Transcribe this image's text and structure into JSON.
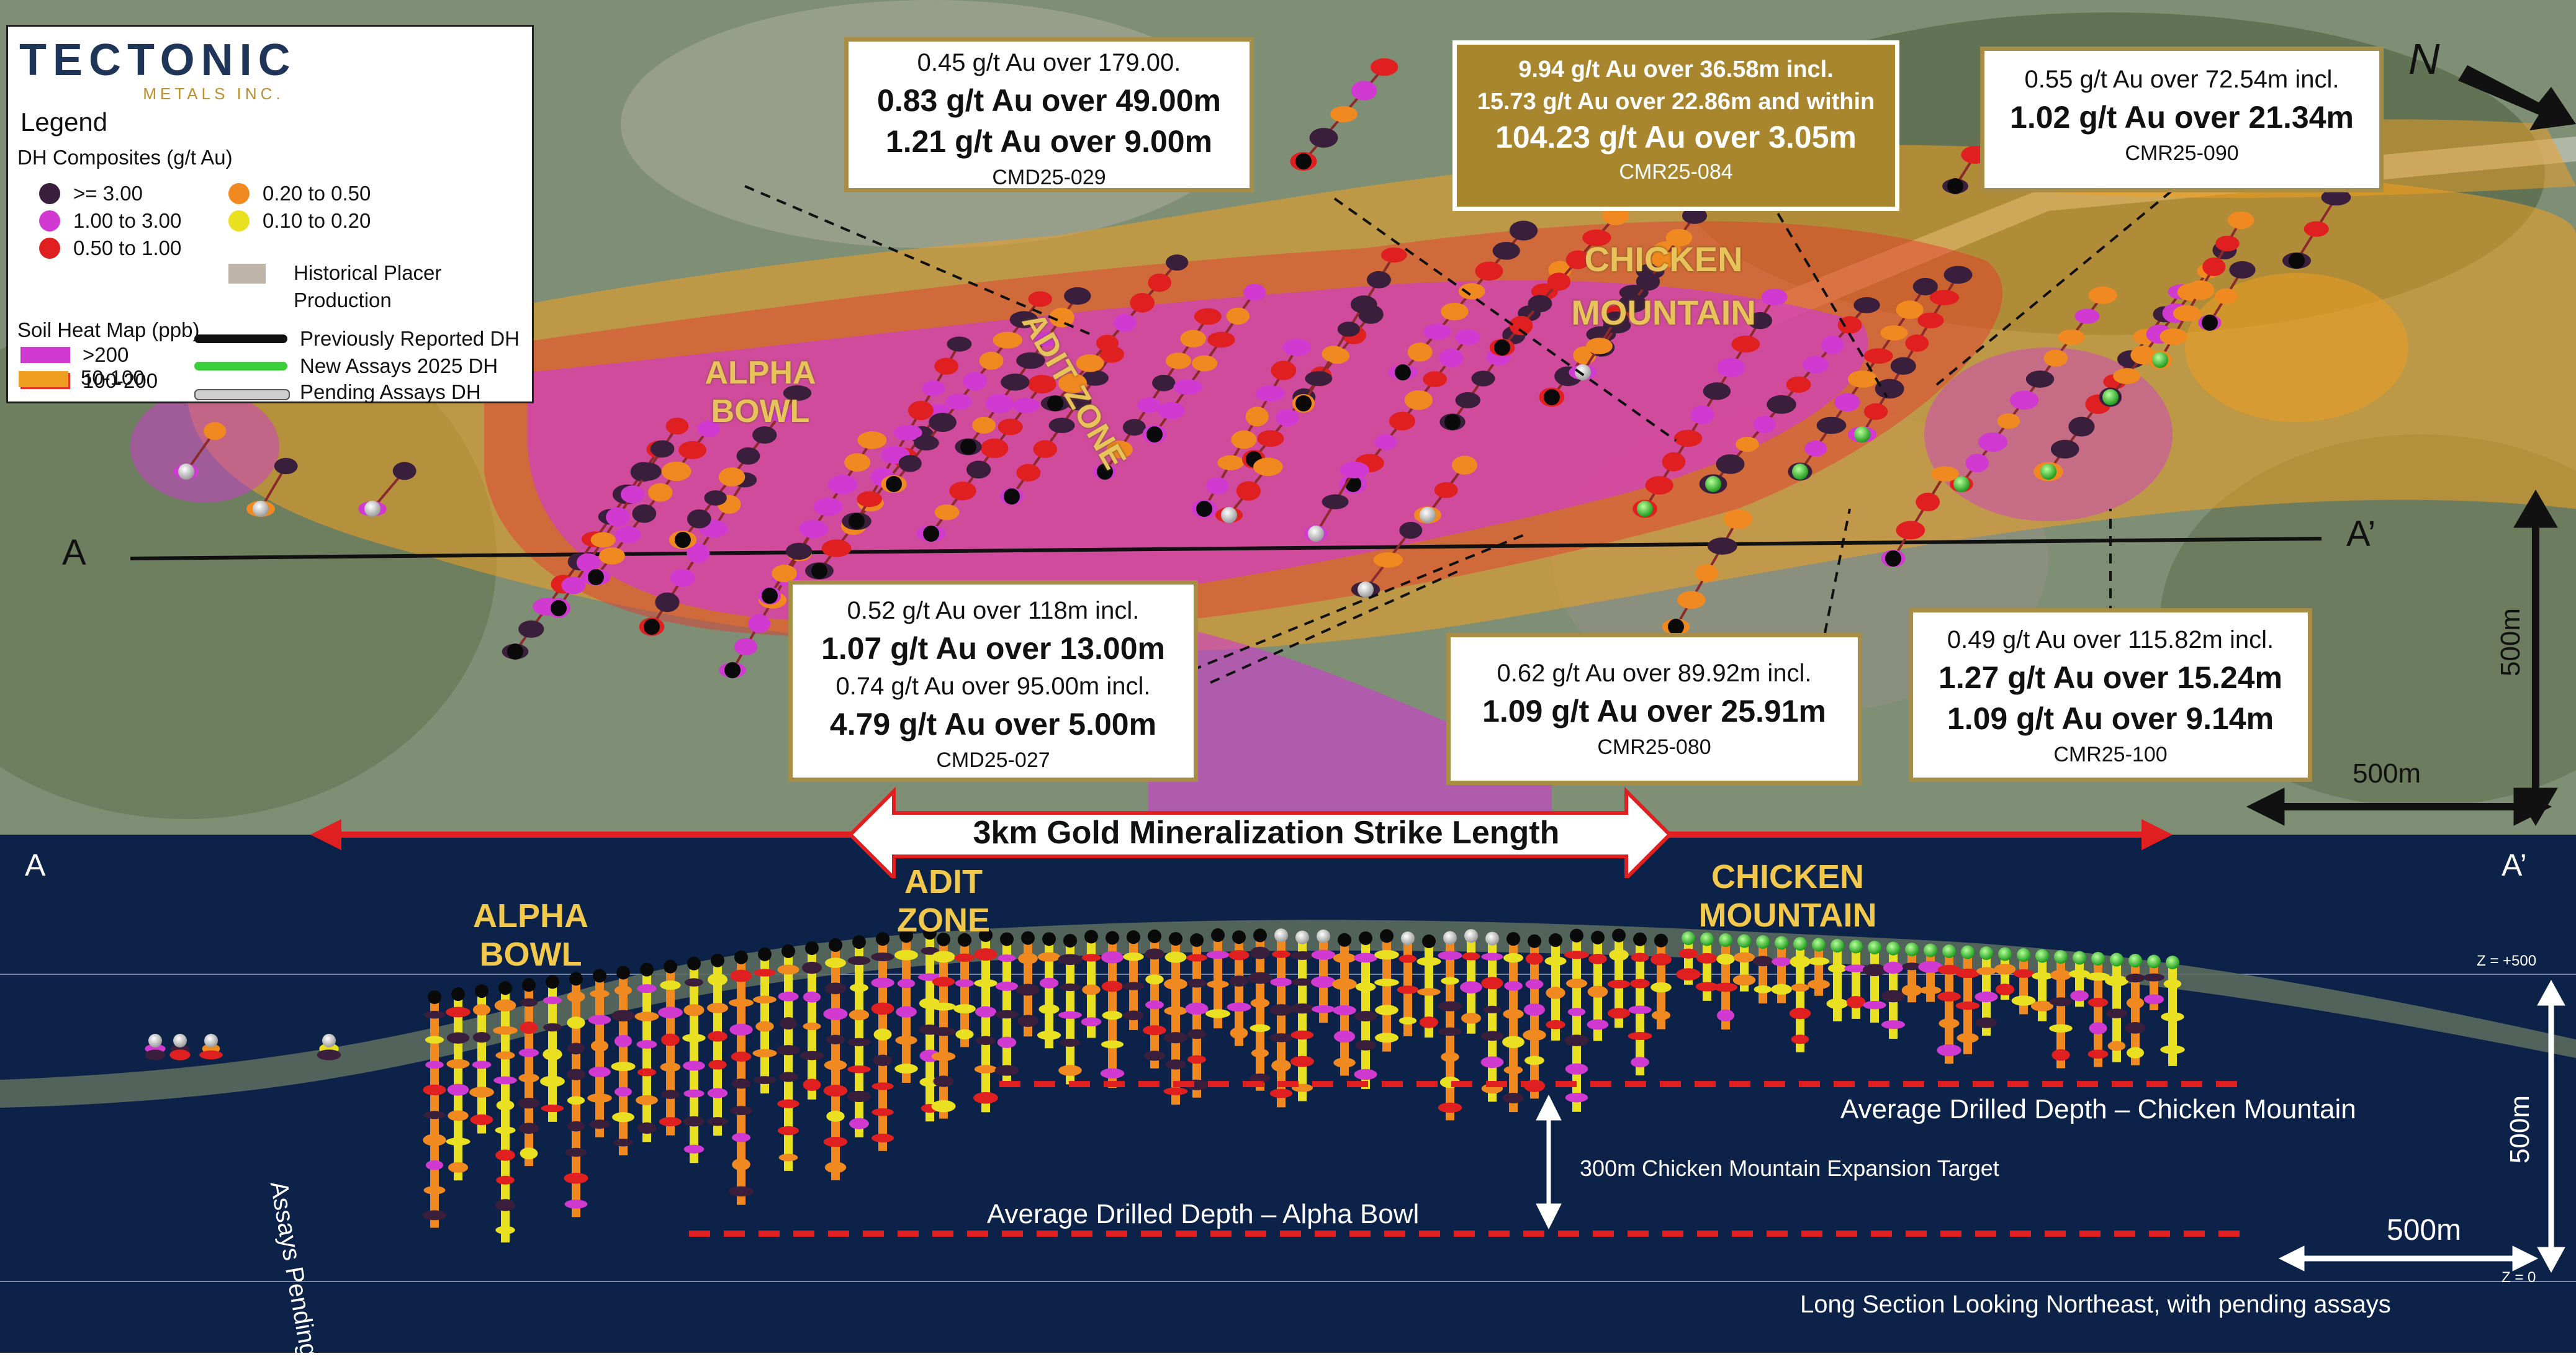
{
  "logo": {
    "name": "TECTONIC",
    "sub": "METALS INC."
  },
  "legend": {
    "title": "Legend",
    "dh_title": "DH Composites (g/t Au)",
    "dh_items": [
      {
        "label": ">= 3.00",
        "color": "#3a1f3d"
      },
      {
        "label": "1.00 to 3.00",
        "color": "#d13ad1"
      },
      {
        "label": "0.50 to 1.00",
        "color": "#e02020"
      },
      {
        "label": "0.20 to 0.50",
        "color": "#f08a20"
      },
      {
        "label": "0.10 to 0.20",
        "color": "#e8e020"
      }
    ],
    "placer_label": "Historical Placer Production",
    "soil_title": "Soil Heat Map (ppb)",
    "soil_items": [
      {
        "label": ">200",
        "color": "#d13ad1"
      },
      {
        "label": "100-200",
        "color": "#e8322a"
      },
      {
        "label": "50-100",
        "color": "#f0a020"
      }
    ],
    "dh_types": [
      {
        "label": "Previously Reported DH",
        "color": "#111111"
      },
      {
        "label": "New Assays 2025 DH",
        "color": "#3ccf3c"
      },
      {
        "label": "Pending Assays DH",
        "color": "#f0f0f0"
      }
    ]
  },
  "callouts": {
    "cmd029": {
      "line1": "0.45 g/t Au over 179.00.",
      "line2": "0.83 g/t Au over 49.00m",
      "line3": "1.21 g/t Au over 9.00m",
      "hole": "CMD25-029"
    },
    "cmr084": {
      "line1": "9.94 g/t Au over 36.58m  incl.",
      "line2": "15.73 g/t Au over 22.86m and within",
      "line3": "104.23 g/t Au over 3.05m",
      "hole": "CMR25-084"
    },
    "cmr090": {
      "line1": "0.55 g/t Au over 72.54m incl.",
      "line2": "1.02 g/t Au over 21.34m",
      "hole": "CMR25-090"
    },
    "cmd027": {
      "line1": "0.52 g/t Au over 118m incl.",
      "line2": "1.07 g/t Au over 13.00m",
      "line3": "0.74 g/t Au over 95.00m incl.",
      "line4": "4.79 g/t Au over 5.00m",
      "hole": "CMD25-027"
    },
    "cmr080": {
      "line1": "0.62 g/t Au over 89.92m incl.",
      "line2": "1.09 g/t Au over 25.91m",
      "hole": "CMR25-080"
    },
    "cmr100": {
      "line1": "0.49 g/t Au over 115.82m incl.",
      "line2": "1.27 g/t Au over 15.24m",
      "line3": "1.09 g/t Au over 9.14m",
      "hole": "CMR25-100"
    }
  },
  "map_labels": {
    "alpha_bowl": "ALPHA BOWL",
    "adit_zone": "ADIT ZONE",
    "chicken_mountain": "CHICKEN MOUNTAIN",
    "a": "A",
    "a_prime": "A’",
    "north": "N",
    "scale_v": "500m",
    "scale_h": "500m"
  },
  "strike_label": "3km Gold Mineralization Strike Length",
  "section": {
    "a": "A",
    "a_prime": "A’",
    "alpha_bowl": "ALPHA BOWL",
    "adit_zone": "ADIT ZONE",
    "chicken_mountain": "CHICKEN MOUNTAIN",
    "z500": "Z = +500",
    "z0": "Z = 0",
    "assays_pending": "Assays Pending",
    "avg_chicken": "Average Drilled Depth – Chicken Mountain",
    "avg_alpha": "Average Drilled Depth – Alpha Bowl",
    "expansion": "300m Chicken Mountain Expansion Target",
    "scale_v": "500m",
    "scale_h": "500m",
    "caption": "Long Section Looking Northeast, with pending assays"
  }
}
